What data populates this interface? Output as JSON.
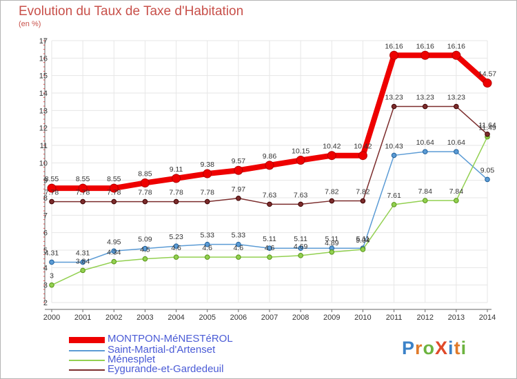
{
  "title": "Evolution du Taux de Taxe d'Habitation",
  "subtitle": "(en %)",
  "logo": {
    "text": "ProXiti",
    "letters": [
      {
        "ch": "P",
        "color": "#3b82c8"
      },
      {
        "ch": "r",
        "color": "#e07a2a"
      },
      {
        "ch": "o",
        "color": "#6cb33f"
      },
      {
        "ch": "X",
        "color": "#e04a2a"
      },
      {
        "ch": "i",
        "color": "#3b82c8"
      },
      {
        "ch": "t",
        "color": "#e07a2a"
      },
      {
        "ch": "i",
        "color": "#6cb33f"
      }
    ]
  },
  "chart_data": {
    "type": "line",
    "title": "Evolution du Taux de Taxe d'Habitation",
    "ylabel": "(en %)",
    "x": [
      "2000",
      "2001",
      "2002",
      "2003",
      "2004",
      "2005",
      "2006",
      "2007",
      "2008",
      "2009",
      "2010",
      "2011",
      "2012",
      "2013",
      "2014"
    ],
    "ylim": [
      2,
      17
    ],
    "yticks": [
      "2",
      "3",
      "4",
      "5",
      "6",
      "7",
      "8",
      "9",
      "10",
      "11",
      "12",
      "13",
      "14",
      "15",
      "16",
      "17"
    ],
    "grid": true,
    "legend": "bottom-left",
    "series": [
      {
        "name": "MONTPON-MéNESTéROL",
        "color": "#ee0000",
        "emphasis": true,
        "values": [
          8.55,
          8.55,
          8.55,
          8.85,
          9.11,
          9.38,
          9.57,
          9.86,
          10.15,
          10.42,
          10.42,
          16.16,
          16.16,
          16.16,
          14.57
        ],
        "labels": [
          "8.55",
          "8.55",
          "8.55",
          "8.85",
          "9.11",
          "9.38",
          "9.57",
          "9.86",
          "10.15",
          "10.42",
          "10.42",
          "16.16",
          "16.16",
          "16.16",
          "14.57"
        ]
      },
      {
        "name": "Saint-Martial-d'Artenset",
        "color": "#5b9bd5",
        "values": [
          4.31,
          4.31,
          4.95,
          5.09,
          5.23,
          5.33,
          5.33,
          5.11,
          5.11,
          5.11,
          5.11,
          10.43,
          10.64,
          10.64,
          9.05
        ],
        "labels": [
          "4.31",
          "4.31",
          "4.95",
          "5.09",
          "5.23",
          "5.33",
          "5.33",
          "5.11",
          "5.11",
          "5.11",
          "5.11",
          "10.43",
          "10.64",
          "10.64",
          "9.05"
        ]
      },
      {
        "name": "Ménesplet",
        "color": "#92d050",
        "values": [
          3,
          3.84,
          4.34,
          4.5,
          4.6,
          4.6,
          4.6,
          4.6,
          4.69,
          4.89,
          5.04,
          7.61,
          7.84,
          7.84,
          11.49
        ],
        "labels": [
          "3",
          "3.84",
          "4.34",
          "4.5",
          "4.6",
          "4.6",
          "4.6",
          "4.6",
          "4.69",
          "4.89",
          "5.04",
          "7.61",
          "7.84",
          "7.84",
          "11.49"
        ]
      },
      {
        "name": "Eygurande-et-Gardedeuil",
        "color": "#7b2c2c",
        "values": [
          7.78,
          7.78,
          7.78,
          7.78,
          7.78,
          7.78,
          7.97,
          7.63,
          7.63,
          7.82,
          7.82,
          13.23,
          13.23,
          13.23,
          11.64
        ],
        "labels": [
          "7.78",
          "7.78",
          "7.78",
          "7.78",
          "7.78",
          "7.78",
          "7.97",
          "7.63",
          "7.63",
          "7.82",
          "7.82",
          "13.23",
          "13.23",
          "13.23",
          "11.64"
        ]
      }
    ]
  }
}
